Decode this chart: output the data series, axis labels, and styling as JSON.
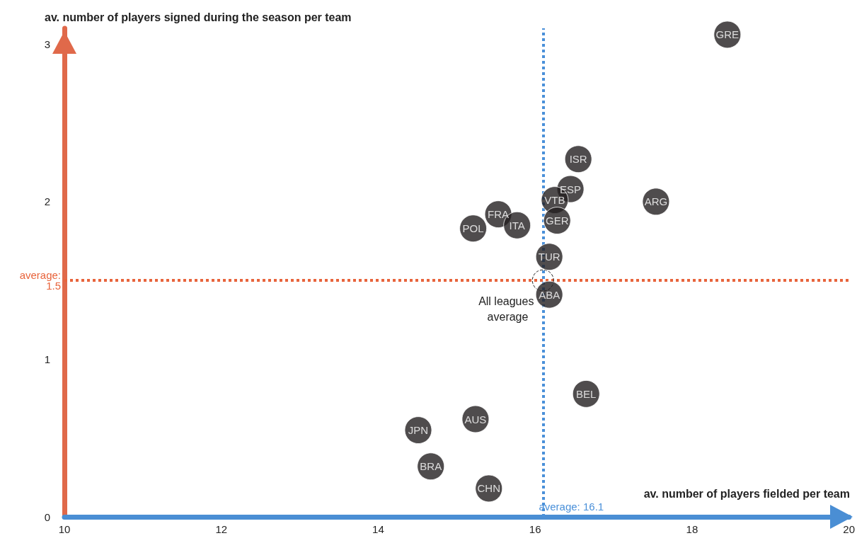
{
  "chart_data": {
    "type": "scatter",
    "xlabel": "av. number of players fielded per team",
    "ylabel": "av. number of players signed during the season per team",
    "x": [
      18.45,
      16.55,
      16.45,
      16.25,
      17.54,
      16.28,
      15.53,
      15.77,
      15.21,
      16.18,
      16.18,
      16.65,
      15.24,
      14.51,
      14.67,
      15.41
    ],
    "values": [
      3.06,
      2.27,
      2.08,
      2.01,
      2.0,
      1.88,
      1.92,
      1.85,
      1.83,
      1.65,
      1.41,
      0.78,
      0.62,
      0.55,
      0.32,
      0.18
    ],
    "value_labels": [
      "GRE",
      "ISR",
      "ESP",
      "VTB",
      "ARG",
      "GER",
      "FRA",
      "ITA",
      "POL",
      "TUR",
      "ABA",
      "BEL",
      "AUS",
      "JPN",
      "BRA",
      "CHN"
    ],
    "color": "#231f20",
    "marker": "circle",
    "xlim": [
      10,
      20
    ],
    "xticks": [
      10,
      12,
      14,
      16,
      18,
      20
    ],
    "ylim": [
      0,
      3.1
    ],
    "yticks": [
      0,
      1,
      2,
      3
    ],
    "ref_lines": [
      {
        "axis": "x",
        "value": 16.1,
        "label": "average: 16.1",
        "color": "#4a90d9",
        "line_style": "dotted"
      },
      {
        "axis": "y",
        "value": 1.5,
        "label": "average: 1.5",
        "color": "#e8643c",
        "line_style": "dotted"
      }
    ],
    "annotations": [
      {
        "text": "All leagues average",
        "x": 16.1,
        "y": 1.5
      }
    ],
    "grid": false
  }
}
